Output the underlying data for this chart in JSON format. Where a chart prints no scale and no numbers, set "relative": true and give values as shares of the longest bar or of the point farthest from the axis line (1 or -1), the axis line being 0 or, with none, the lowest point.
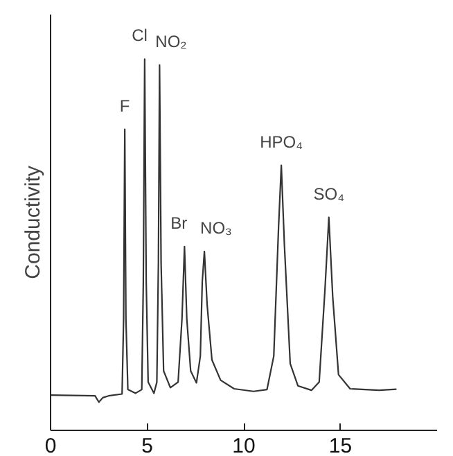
{
  "chart_data": {
    "type": "line",
    "relative": true,
    "ylabel": "Conductivity",
    "xlim": [
      0,
      20
    ],
    "xticks": [
      0,
      5,
      10,
      15
    ],
    "grid": false,
    "marker": "none",
    "line_style": "solid",
    "x": [
      0,
      2.3,
      2.5,
      2.7,
      3.0,
      3.7,
      3.78,
      3.84,
      3.9,
      4.0,
      4.4,
      4.72,
      4.8,
      4.87,
      4.95,
      5.05,
      5.35,
      5.5,
      5.58,
      5.64,
      5.72,
      5.85,
      6.2,
      6.6,
      6.8,
      6.93,
      7.05,
      7.25,
      7.55,
      7.75,
      7.85,
      7.96,
      8.1,
      8.35,
      8.8,
      9.5,
      10.5,
      11.2,
      11.55,
      11.8,
      11.94,
      12.1,
      12.4,
      12.8,
      13.5,
      13.9,
      14.2,
      14.4,
      14.6,
      14.9,
      15.5,
      17.0,
      17.9
    ],
    "series": [
      {
        "color": "#333333",
        "values": [
          0.095,
          0.093,
          0.076,
          0.088,
          0.093,
          0.098,
          0.3,
          0.811,
          0.3,
          0.11,
          0.1,
          0.11,
          0.4,
          1.0,
          0.4,
          0.13,
          0.1,
          0.13,
          0.45,
          0.984,
          0.45,
          0.16,
          0.115,
          0.13,
          0.3,
          0.495,
          0.3,
          0.16,
          0.128,
          0.2,
          0.4,
          0.482,
          0.34,
          0.19,
          0.135,
          0.112,
          0.105,
          0.11,
          0.2,
          0.55,
          0.714,
          0.5,
          0.18,
          0.12,
          0.108,
          0.13,
          0.38,
          0.574,
          0.36,
          0.15,
          0.112,
          0.108,
          0.111
        ]
      }
    ],
    "annotations": [
      {
        "text": "F",
        "x": 3.84,
        "y": 0.811
      },
      {
        "text": "Cl",
        "x": 4.87,
        "y": 1.0
      },
      {
        "text": "NO₂",
        "x": 5.64,
        "y": 0.984
      },
      {
        "text": "Br",
        "x": 6.93,
        "y": 0.495
      },
      {
        "text": "NO₃",
        "x": 7.96,
        "y": 0.482
      },
      {
        "text": "HPO₄",
        "x": 11.94,
        "y": 0.714
      },
      {
        "text": "SO₄",
        "x": 14.4,
        "y": 0.574
      }
    ]
  }
}
